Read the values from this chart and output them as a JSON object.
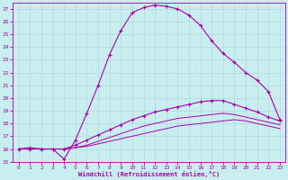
{
  "xlabel": "Windchill (Refroidissement éolien,°C)",
  "bg_color": "#c8eef0",
  "grid_color": "#b0d8dc",
  "line_color": "#aa00aa",
  "xlim": [
    -0.5,
    23.5
  ],
  "ylim": [
    15,
    27.5
  ],
  "xticks": [
    0,
    1,
    2,
    3,
    4,
    5,
    6,
    7,
    8,
    9,
    10,
    11,
    12,
    13,
    14,
    15,
    16,
    17,
    18,
    19,
    20,
    21,
    22,
    23
  ],
  "yticks": [
    15,
    16,
    17,
    18,
    19,
    20,
    21,
    22,
    23,
    24,
    25,
    26,
    27
  ],
  "curve1_x": [
    0,
    1,
    2,
    3,
    4,
    5,
    6,
    7,
    8,
    9,
    10,
    11,
    12,
    13,
    14,
    15,
    16,
    17,
    18,
    19,
    20,
    21,
    22,
    23
  ],
  "curve1_y": [
    16.0,
    16.1,
    16.0,
    16.0,
    15.2,
    16.7,
    18.8,
    21.0,
    23.4,
    25.3,
    26.7,
    27.1,
    27.3,
    27.2,
    27.0,
    26.5,
    25.7,
    24.5,
    23.5,
    22.8,
    22.0,
    21.4,
    20.5,
    18.3
  ],
  "curve2_x": [
    0,
    1,
    2,
    3,
    4,
    5,
    6,
    7,
    8,
    9,
    10,
    11,
    12,
    13,
    14,
    15,
    16,
    17,
    18,
    19,
    20,
    21,
    22,
    23
  ],
  "curve2_y": [
    16.0,
    16.0,
    16.0,
    16.0,
    16.0,
    16.3,
    16.7,
    17.1,
    17.5,
    17.9,
    18.3,
    18.6,
    18.9,
    19.1,
    19.3,
    19.5,
    19.7,
    19.8,
    19.8,
    19.5,
    19.2,
    18.9,
    18.5,
    18.2
  ],
  "curve3_x": [
    0,
    1,
    2,
    3,
    4,
    5,
    6,
    7,
    8,
    9,
    10,
    11,
    12,
    13,
    14,
    15,
    16,
    17,
    18,
    19,
    20,
    21,
    22,
    23
  ],
  "curve3_y": [
    16.0,
    16.0,
    16.0,
    16.0,
    16.0,
    16.1,
    16.3,
    16.6,
    16.9,
    17.2,
    17.5,
    17.8,
    18.0,
    18.2,
    18.4,
    18.5,
    18.6,
    18.7,
    18.8,
    18.7,
    18.5,
    18.3,
    18.1,
    17.9
  ],
  "curve4_x": [
    0,
    1,
    2,
    3,
    4,
    5,
    6,
    7,
    8,
    9,
    10,
    11,
    12,
    13,
    14,
    15,
    16,
    17,
    18,
    19,
    20,
    21,
    22,
    23
  ],
  "curve4_y": [
    16.0,
    16.0,
    16.0,
    16.0,
    16.0,
    16.1,
    16.2,
    16.4,
    16.6,
    16.8,
    17.0,
    17.2,
    17.4,
    17.6,
    17.8,
    17.9,
    18.0,
    18.1,
    18.2,
    18.3,
    18.2,
    18.0,
    17.8,
    17.6
  ]
}
